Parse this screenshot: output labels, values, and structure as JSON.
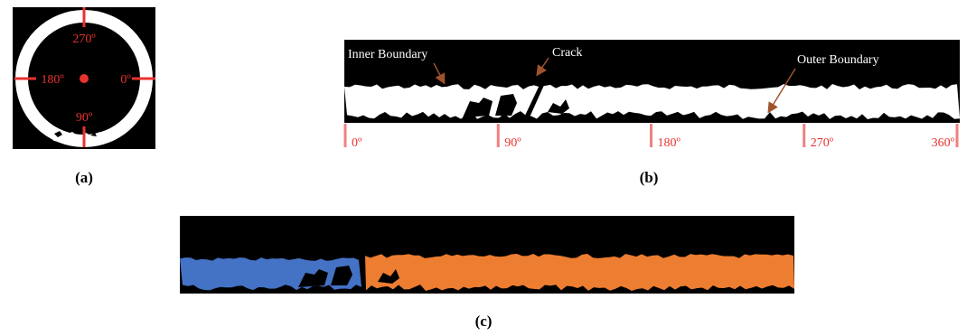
{
  "panel_a": {
    "angle_labels": [
      "270º",
      "180º",
      "0º",
      "90º"
    ],
    "caption": "(a)"
  },
  "panel_b": {
    "annotations": [
      "Inner Boundary",
      "Crack",
      "Outer Boundary"
    ],
    "angle_ticks": [
      "0º",
      "90º",
      "180º",
      "270º",
      "360º"
    ],
    "caption": "(b)"
  },
  "panel_c": {
    "caption": "(c)"
  }
}
